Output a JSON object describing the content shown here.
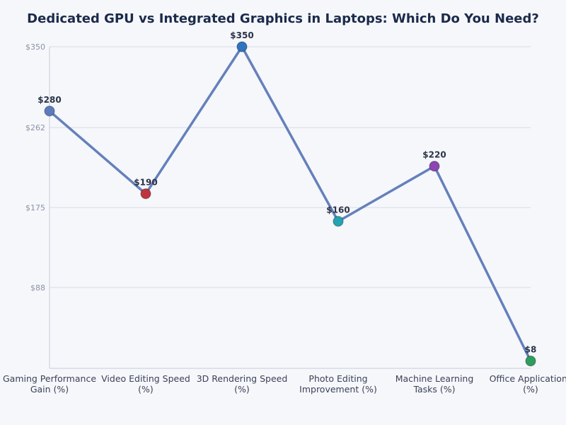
{
  "chart_data": {
    "type": "line",
    "title": "Dedicated GPU vs Integrated Graphics in Laptops: Which Do You Need?",
    "categories": [
      [
        "Gaming Performance",
        "Gain (%)"
      ],
      [
        "Video Editing Speed",
        "(%)"
      ],
      [
        "3D Rendering Speed",
        "(%)"
      ],
      [
        "Photo Editing",
        "Improvement (%)"
      ],
      [
        "Machine Learning",
        "Tasks (%)"
      ],
      [
        "Office Applications",
        "(%)"
      ]
    ],
    "values": [
      280,
      190,
      350,
      160,
      220,
      8
    ],
    "data_labels": [
      "$280",
      "$190",
      "$350",
      "$160",
      "$220",
      "$8"
    ],
    "point_colors": [
      "#5b7bbd",
      "#c0343f",
      "#2f74c0",
      "#24a3b3",
      "#8e44b5",
      "#2e9e5c"
    ],
    "line_color": "#6580bb",
    "yticks": [
      88,
      175,
      262,
      350
    ],
    "ytick_labels": [
      "$88",
      "$175",
      "$262",
      "$350"
    ],
    "ylim": [
      0,
      350
    ],
    "grid": true,
    "xlabel": "",
    "ylabel": ""
  }
}
